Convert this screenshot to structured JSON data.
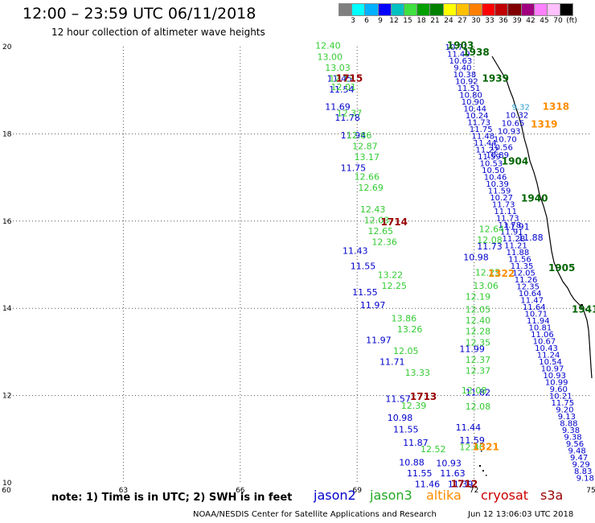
{
  "header": {
    "title": "12:00 – 23:59 UTC 06/11/2018",
    "subtitle": "12 hour collection of altimeter wave heights"
  },
  "color_scale": {
    "colors": [
      "#7f7f7f",
      "#00ffff",
      "#00b0ff",
      "#0000ff",
      "#00c0c0",
      "#40e040",
      "#00a000",
      "#008000",
      "#ffff00",
      "#ffc000",
      "#ff8000",
      "#ff0000",
      "#c00000",
      "#800000",
      "#a00080",
      "#ff80ff",
      "#ffc0ff",
      "#000000"
    ],
    "labels": [
      "3",
      "6",
      "9",
      "12",
      "15",
      "18",
      "21",
      "24",
      "27",
      "30",
      "33",
      "36",
      "39",
      "42",
      "45",
      "70",
      "(ft)"
    ]
  },
  "chart_data": {
    "type": "scatter",
    "xlim": [
      60,
      75
    ],
    "ylim": [
      10,
      20
    ],
    "x_ticks": [
      "60",
      "63",
      "66",
      "69",
      "72",
      "75"
    ],
    "y_ticks": [
      "10",
      "12",
      "14",
      "16",
      "18",
      "20"
    ],
    "grid": true,
    "series": [
      {
        "name": "jason2",
        "color": "#0000cc",
        "points": [
          [
            68.55,
            19.2,
            "11.45"
          ],
          [
            68.6,
            18.95,
            "11.54"
          ],
          [
            68.5,
            18.55,
            "11.69"
          ],
          [
            68.75,
            18.3,
            "11.78"
          ],
          [
            68.9,
            17.9,
            "11.94"
          ],
          [
            68.9,
            17.15,
            "11.75"
          ],
          [
            68.95,
            15.25,
            "11.43"
          ],
          [
            69.15,
            14.9,
            "11.55"
          ],
          [
            69.2,
            14.3,
            "11.55"
          ],
          [
            69.4,
            14.0,
            "11.97"
          ],
          [
            69.55,
            13.2,
            "11.97"
          ],
          [
            69.9,
            12.7,
            "11.71"
          ],
          [
            70.05,
            11.85,
            "11.57"
          ],
          [
            70.1,
            11.42,
            "10.98"
          ],
          [
            70.25,
            11.15,
            "11.55"
          ],
          [
            70.5,
            10.85,
            "11.87"
          ],
          [
            70.4,
            10.4,
            "10.88"
          ],
          [
            70.6,
            10.15,
            "11.55"
          ],
          [
            70.8,
            9.9,
            "11.46"
          ],
          [
            72.1,
            12.0,
            "11.82"
          ],
          [
            71.85,
            11.2,
            "11.44"
          ],
          [
            71.95,
            10.9,
            "11.59"
          ],
          [
            71.35,
            10.38,
            "10.93"
          ],
          [
            71.45,
            10.15,
            "11.63"
          ],
          [
            71.65,
            9.9,
            "11.39"
          ],
          [
            71.95,
            13.0,
            "11.99"
          ],
          [
            72.4,
            15.35,
            "11.73"
          ],
          [
            72.05,
            15.1,
            "10.98"
          ],
          [
            73.1,
            15.8,
            "11.91"
          ],
          [
            73.45,
            15.55,
            "11.88"
          ]
        ]
      },
      {
        "name": "jason3",
        "color": "#33cc33",
        "points": [
          [
            68.25,
            19.95,
            "12.40"
          ],
          [
            68.3,
            19.7,
            "13.00"
          ],
          [
            68.5,
            19.45,
            "13.03"
          ],
          [
            68.6,
            19.2,
            "12.13"
          ],
          [
            68.65,
            19.0,
            "12.01"
          ],
          [
            68.8,
            18.4,
            "12.37"
          ],
          [
            69.05,
            17.9,
            "12.86"
          ],
          [
            69.2,
            17.65,
            "12.87"
          ],
          [
            69.25,
            17.4,
            "13.17"
          ],
          [
            69.25,
            16.95,
            "12.66"
          ],
          [
            69.35,
            16.7,
            "12.69"
          ],
          [
            69.4,
            16.2,
            "12.43"
          ],
          [
            69.5,
            15.95,
            "12.03"
          ],
          [
            69.6,
            15.7,
            "12.65"
          ],
          [
            69.7,
            15.45,
            "12.36"
          ],
          [
            69.85,
            14.7,
            "13.22"
          ],
          [
            69.95,
            14.45,
            "12.25"
          ],
          [
            70.2,
            13.7,
            "13.86"
          ],
          [
            70.35,
            13.45,
            "13.26"
          ],
          [
            70.25,
            12.95,
            "12.05"
          ],
          [
            70.55,
            12.45,
            "13.33"
          ],
          [
            70.45,
            11.7,
            "12.39"
          ],
          [
            70.95,
            10.7,
            "12.52"
          ],
          [
            72.1,
            14.2,
            "12.19"
          ],
          [
            72.1,
            13.9,
            "12.05"
          ],
          [
            72.1,
            13.65,
            "12.40"
          ],
          [
            72.1,
            13.4,
            "12.28"
          ],
          [
            72.1,
            13.15,
            "12.35"
          ],
          [
            72.1,
            12.75,
            "12.37"
          ],
          [
            72.1,
            12.5,
            "12.37"
          ],
          [
            72.0,
            12.05,
            "12.08"
          ],
          [
            72.1,
            11.68,
            "12.08"
          ],
          [
            71.95,
            10.75,
            "12.40"
          ],
          [
            72.45,
            15.75,
            "12.64"
          ],
          [
            72.4,
            15.5,
            "12.08"
          ],
          [
            72.35,
            14.75,
            "12.25"
          ],
          [
            72.3,
            14.45,
            "13.06"
          ]
        ]
      },
      {
        "name": "altika",
        "color": "#ff8c00",
        "points": [
          [
            74.1,
            18.55,
            "1318"
          ],
          [
            73.8,
            18.15,
            "1319"
          ],
          [
            72.7,
            14.72,
            "1322"
          ],
          [
            72.3,
            10.75,
            "1321"
          ]
        ]
      },
      {
        "name": "cryosat",
        "color": "#990000",
        "points": [
          [
            68.8,
            19.2,
            "1715"
          ],
          [
            69.95,
            15.9,
            "1714"
          ],
          [
            70.7,
            11.9,
            "1713"
          ],
          [
            71.75,
            9.9,
            "1712"
          ]
        ]
      },
      {
        "name": "s3a",
        "color": "#006400",
        "points": [
          [
            71.65,
            19.95,
            "1903"
          ],
          [
            72.05,
            19.8,
            "1938"
          ],
          [
            72.55,
            19.2,
            "1939"
          ],
          [
            73.05,
            17.3,
            "1904"
          ],
          [
            73.55,
            16.45,
            "1940"
          ],
          [
            74.25,
            14.85,
            "1905"
          ],
          [
            74.85,
            13.9,
            "1941"
          ]
        ]
      }
    ]
  },
  "track_labels": {
    "east_track": [
      "10.71",
      "11.49",
      "10.63",
      "9.40",
      "10.38",
      "10.92",
      "11.51",
      "10.80",
      "10.90",
      "10.44",
      "10.24",
      "11.73",
      "11.75",
      "11.48",
      "11.44",
      "11.22",
      "11.59",
      "10.53",
      "10.50",
      "10.46",
      "10.39",
      "11.59",
      "10.27",
      "11.73",
      "11.11",
      "11.73",
      "11.78",
      "11.91",
      "11.28",
      "11.21",
      "11.88",
      "11.56",
      "11.35",
      "12.05",
      "11.26",
      "12.35",
      "10.64",
      "11.47",
      "11.64",
      "10.71",
      "11.94",
      "10.81",
      "11.06",
      "10.67",
      "10.43",
      "11.24",
      "10.54",
      "10.97",
      "10.93",
      "10.99",
      "9.60",
      "10.21",
      "11.75",
      "9.20",
      "9.13",
      "8.88",
      "9.38",
      "9.38",
      "9.56",
      "9.48",
      "9.47",
      "9.29",
      "8.83",
      "9.18"
    ],
    "altika_track": [
      "9.32",
      "10.32",
      "10.65",
      "10.93",
      "10.70",
      "10.56",
      "10.89"
    ]
  },
  "note": "note:  1) Time is in UTC;  2) SWH is in feet",
  "legend": [
    {
      "label": "jason2",
      "color": "#0000cc"
    },
    {
      "label": "jason3",
      "color": "#22aa22"
    },
    {
      "label": "altika",
      "color": "#ff8c00"
    },
    {
      "label": "cryosat",
      "color": "#cc0000"
    },
    {
      "label": "s3a",
      "color": "#990000"
    }
  ],
  "footer": {
    "credit": "NOAA/NESDIS Center for Satellite Applications and Research",
    "timestamp": "Jun 12 13:06:03 UTC 2018"
  }
}
